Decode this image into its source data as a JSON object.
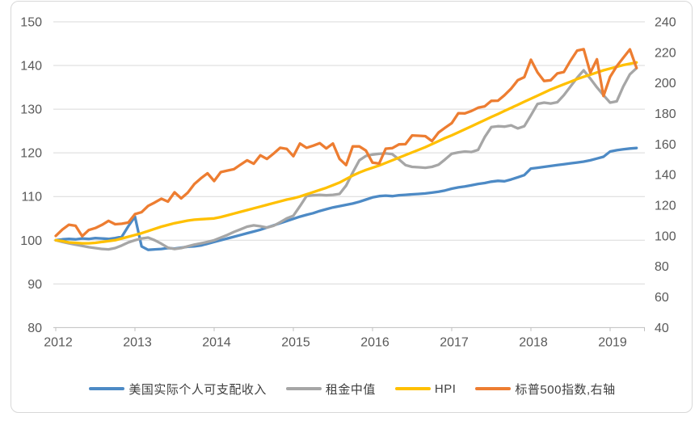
{
  "chart_data": {
    "type": "line",
    "title": "",
    "x_unit": "month",
    "x_start": "2012-01",
    "x_end": "2019-05",
    "x_tick_labels": [
      "2012",
      "2013",
      "2014",
      "2015",
      "2016",
      "2017",
      "2018",
      "2019"
    ],
    "left_axis": {
      "min": 80,
      "max": 150,
      "step": 10,
      "ticks": [
        "150",
        "140",
        "130",
        "120",
        "110",
        "100",
        "90",
        "80"
      ]
    },
    "right_axis": {
      "min": 40,
      "max": 240,
      "step": 20,
      "ticks": [
        "240",
        "220",
        "200",
        "180",
        "160",
        "140",
        "120",
        "100",
        "80",
        "60",
        "40"
      ]
    },
    "grid": true,
    "legend_position": "bottom",
    "series": [
      {
        "name": "美国实际个人可支配收入",
        "axis": "left",
        "color": "#4d8ac5",
        "values": [
          100.0,
          100.2,
          100.3,
          100.2,
          100.4,
          100.3,
          100.5,
          100.4,
          100.3,
          100.5,
          100.8,
          103.2,
          105.4,
          98.6,
          97.8,
          97.9,
          98.0,
          98.2,
          98.1,
          98.3,
          98.5,
          98.6,
          98.8,
          99.2,
          99.6,
          100.0,
          100.4,
          100.8,
          101.2,
          101.6,
          102.0,
          102.4,
          102.9,
          103.4,
          103.9,
          104.4,
          104.9,
          105.4,
          105.8,
          106.2,
          106.7,
          107.1,
          107.5,
          107.8,
          108.1,
          108.4,
          108.8,
          109.3,
          109.8,
          110.1,
          110.2,
          110.1,
          110.3,
          110.4,
          110.5,
          110.6,
          110.7,
          110.9,
          111.1,
          111.4,
          111.8,
          112.1,
          112.3,
          112.6,
          112.9,
          113.1,
          113.4,
          113.6,
          113.5,
          113.9,
          114.4,
          114.9,
          116.4,
          116.6,
          116.8,
          117.0,
          117.2,
          117.4,
          117.6,
          117.8,
          118.0,
          118.3,
          118.7,
          119.1,
          120.3,
          120.6,
          120.8,
          121.0,
          121.1
        ]
      },
      {
        "name": "租金中值",
        "axis": "left",
        "color": "#a6a6a6",
        "values": [
          100.0,
          99.6,
          99.3,
          99.0,
          98.7,
          98.4,
          98.2,
          98.0,
          97.9,
          98.2,
          98.8,
          99.5,
          100.0,
          100.4,
          100.6,
          100.0,
          99.2,
          98.3,
          98.0,
          98.2,
          98.6,
          99.0,
          99.3,
          99.6,
          100.0,
          100.6,
          101.2,
          101.9,
          102.5,
          103.1,
          103.4,
          103.2,
          102.9,
          103.3,
          104.1,
          105.0,
          105.6,
          107.8,
          110.1,
          110.3,
          110.4,
          110.3,
          110.4,
          110.6,
          112.5,
          115.5,
          118.3,
          119.3,
          119.6,
          119.8,
          119.9,
          119.7,
          118.5,
          117.2,
          116.8,
          116.7,
          116.6,
          116.8,
          117.3,
          118.5,
          119.8,
          120.1,
          120.3,
          120.2,
          120.7,
          123.6,
          125.9,
          126.1,
          126.0,
          126.3,
          125.6,
          126.1,
          128.6,
          131.2,
          131.5,
          131.3,
          131.6,
          133.2,
          135.2,
          137.2,
          138.9,
          137.0,
          135.0,
          133.2,
          131.5,
          131.8,
          135.2,
          138.0,
          139.4
        ]
      },
      {
        "name": "HPI",
        "axis": "left",
        "color": "#ffc000",
        "values": [
          100.0,
          99.8,
          99.5,
          99.4,
          99.3,
          99.3,
          99.4,
          99.6,
          99.8,
          100.0,
          100.4,
          100.8,
          101.2,
          101.6,
          102.1,
          102.6,
          103.1,
          103.5,
          103.9,
          104.2,
          104.5,
          104.7,
          104.8,
          104.9,
          105.0,
          105.3,
          105.7,
          106.1,
          106.5,
          106.9,
          107.3,
          107.7,
          108.1,
          108.5,
          108.9,
          109.3,
          109.6,
          110.0,
          110.5,
          111.0,
          111.5,
          112.0,
          112.6,
          113.2,
          114.0,
          114.8,
          115.5,
          116.1,
          116.6,
          117.1,
          117.7,
          118.3,
          118.9,
          119.5,
          120.1,
          120.7,
          121.3,
          122.0,
          122.7,
          123.4,
          124.0,
          124.7,
          125.4,
          126.1,
          126.8,
          127.5,
          128.2,
          128.9,
          129.6,
          130.3,
          131.0,
          131.7,
          132.4,
          133.1,
          133.8,
          134.5,
          135.1,
          135.7,
          136.3,
          136.9,
          137.4,
          137.9,
          138.4,
          138.9,
          139.3,
          139.7,
          140.1,
          140.4,
          140.7
        ]
      },
      {
        "name": "标普500指数,右轴",
        "axis": "right",
        "color": "#ed7d31",
        "values": [
          100.0,
          104.1,
          107.3,
          106.6,
          99.8,
          103.8,
          105.1,
          107.2,
          109.8,
          107.6,
          107.9,
          108.7,
          114.2,
          115.5,
          119.6,
          121.8,
          124.3,
          122.4,
          128.5,
          124.5,
          128.2,
          133.9,
          137.7,
          140.9,
          135.9,
          141.7,
          142.7,
          143.6,
          146.6,
          149.4,
          147.2,
          152.7,
          150.3,
          153.8,
          157.6,
          156.9,
          152.1,
          160.4,
          157.6,
          159.0,
          160.6,
          157.2,
          160.4,
          150.3,
          146.3,
          158.5,
          158.5,
          155.8,
          147.9,
          147.3,
          157.0,
          157.4,
          159.8,
          160.0,
          165.7,
          165.5,
          165.2,
          162.0,
          167.6,
          170.7,
          173.7,
          180.2,
          180.1,
          181.7,
          183.8,
          184.7,
          188.3,
          188.4,
          192.0,
          196.3,
          201.8,
          203.8,
          215.2,
          206.9,
          201.3,
          201.8,
          206.2,
          207.2,
          214.6,
          221.2,
          222.1,
          206.7,
          215.5,
          191.5,
          204.0,
          211.0,
          216.5,
          222.0,
          209.8
        ]
      }
    ]
  },
  "colors": {
    "background": "#ffffff",
    "border": "#d8d8d8",
    "gridline": "#d9d9d9",
    "axis_line": "#bfbfbf",
    "tick_label": "#595959",
    "legend_text": "#404040"
  }
}
